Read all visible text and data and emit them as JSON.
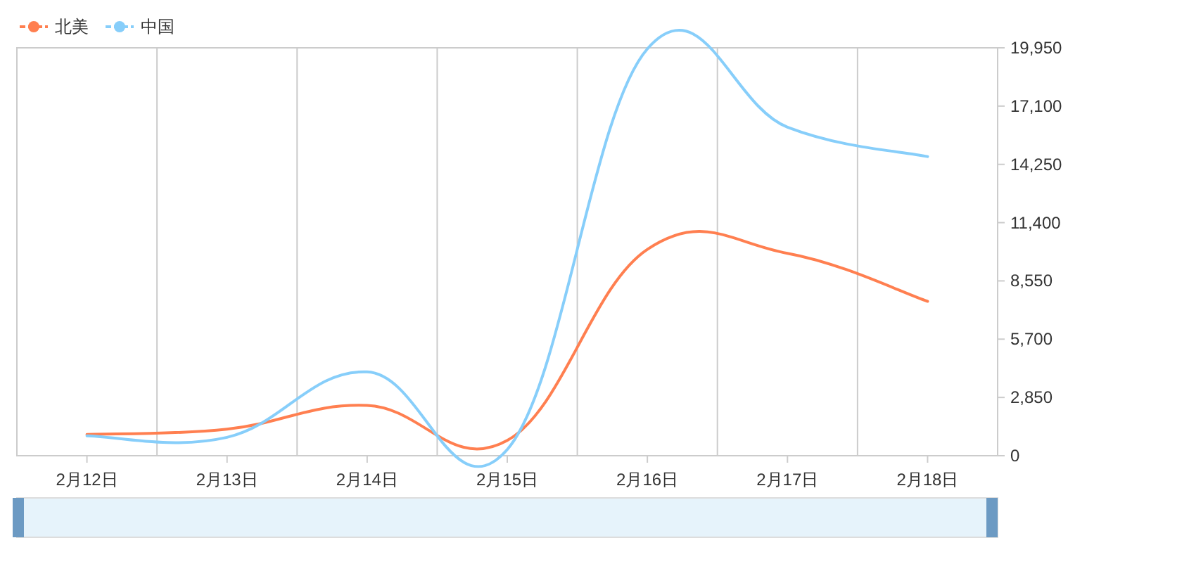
{
  "chart_data": {
    "type": "line",
    "categories": [
      "2月12日",
      "2月13日",
      "2月14日",
      "2月15日",
      "2月16日",
      "2月17日",
      "2月18日"
    ],
    "series": [
      {
        "name": "北美",
        "color": "#ff7f50",
        "values": [
          1040,
          1300,
          2460,
          745,
          10090,
          9900,
          7550
        ]
      },
      {
        "name": "中国",
        "color": "#87cefa",
        "values": [
          975,
          900,
          4100,
          300,
          19900,
          16070,
          14630
        ]
      }
    ],
    "ylim": [
      0,
      19950
    ],
    "yticks": [
      {
        "value": 0,
        "label": "0"
      },
      {
        "value": 2850,
        "label": "2,850"
      },
      {
        "value": 5700,
        "label": "5,700"
      },
      {
        "value": 8550,
        "label": "8,550"
      },
      {
        "value": 11400,
        "label": "11,400"
      },
      {
        "value": 14250,
        "label": "14,250"
      },
      {
        "value": 17100,
        "label": "17,100"
      },
      {
        "value": 19950,
        "label": "19,950"
      }
    ],
    "grid": "x",
    "legend": "top left"
  }
}
